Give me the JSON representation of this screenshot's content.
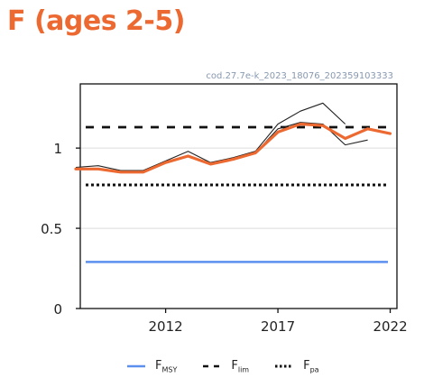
{
  "title": "F (ages 2-5)",
  "colors": {
    "accent": "#ec6a32",
    "fmsy": "#5b8ff0",
    "reference": "#111111",
    "retro": "#222222"
  },
  "chart_data": {
    "type": "line",
    "annotation": "cod.27.7e-k_2023_18076_202359103333",
    "xlim": [
      2008.2,
      2022.3
    ],
    "ylim": [
      0,
      1.4
    ],
    "x_ticks": [
      2012,
      2017,
      2022
    ],
    "x_tick_labels": [
      "2012",
      "2017",
      "2022"
    ],
    "y_ticks": [
      0,
      0.5,
      1
    ],
    "y_tick_labels": [
      "0",
      "0.5",
      "1"
    ],
    "grid": "horizontal",
    "reference_lines": [
      {
        "name": "FMSY",
        "label_main": "F",
        "label_sub": "MSY",
        "value": 0.29,
        "style": "solid"
      },
      {
        "name": "Flim",
        "label_main": "F",
        "label_sub": "lim",
        "value": 1.13,
        "style": "dashed"
      },
      {
        "name": "Fpa",
        "label_main": "F",
        "label_sub": "pa",
        "value": 0.77,
        "style": "dotted"
      }
    ],
    "series": [
      {
        "style": "main",
        "x": [
          2008,
          2009,
          2010,
          2011,
          2012,
          2013,
          2014,
          2015,
          2016,
          2017,
          2018,
          2019,
          2020,
          2021,
          2022
        ],
        "values": [
          0.87,
          0.87,
          0.85,
          0.85,
          0.91,
          0.95,
          0.9,
          0.93,
          0.97,
          1.1,
          1.15,
          1.14,
          1.06,
          1.12,
          1.09
        ]
      },
      {
        "style": "retro",
        "x": [
          2008,
          2009,
          2010,
          2011,
          2012,
          2013,
          2014,
          2015,
          2016,
          2017,
          2018,
          2019,
          2020
        ],
        "values": [
          0.88,
          0.89,
          0.86,
          0.86,
          0.92,
          0.98,
          0.91,
          0.94,
          0.98,
          1.15,
          1.23,
          1.28,
          1.15
        ]
      },
      {
        "style": "retro",
        "x": [
          2016,
          2017,
          2018,
          2019,
          2020,
          2021
        ],
        "values": [
          0.97,
          1.12,
          1.16,
          1.15,
          1.02,
          1.05
        ]
      }
    ]
  }
}
